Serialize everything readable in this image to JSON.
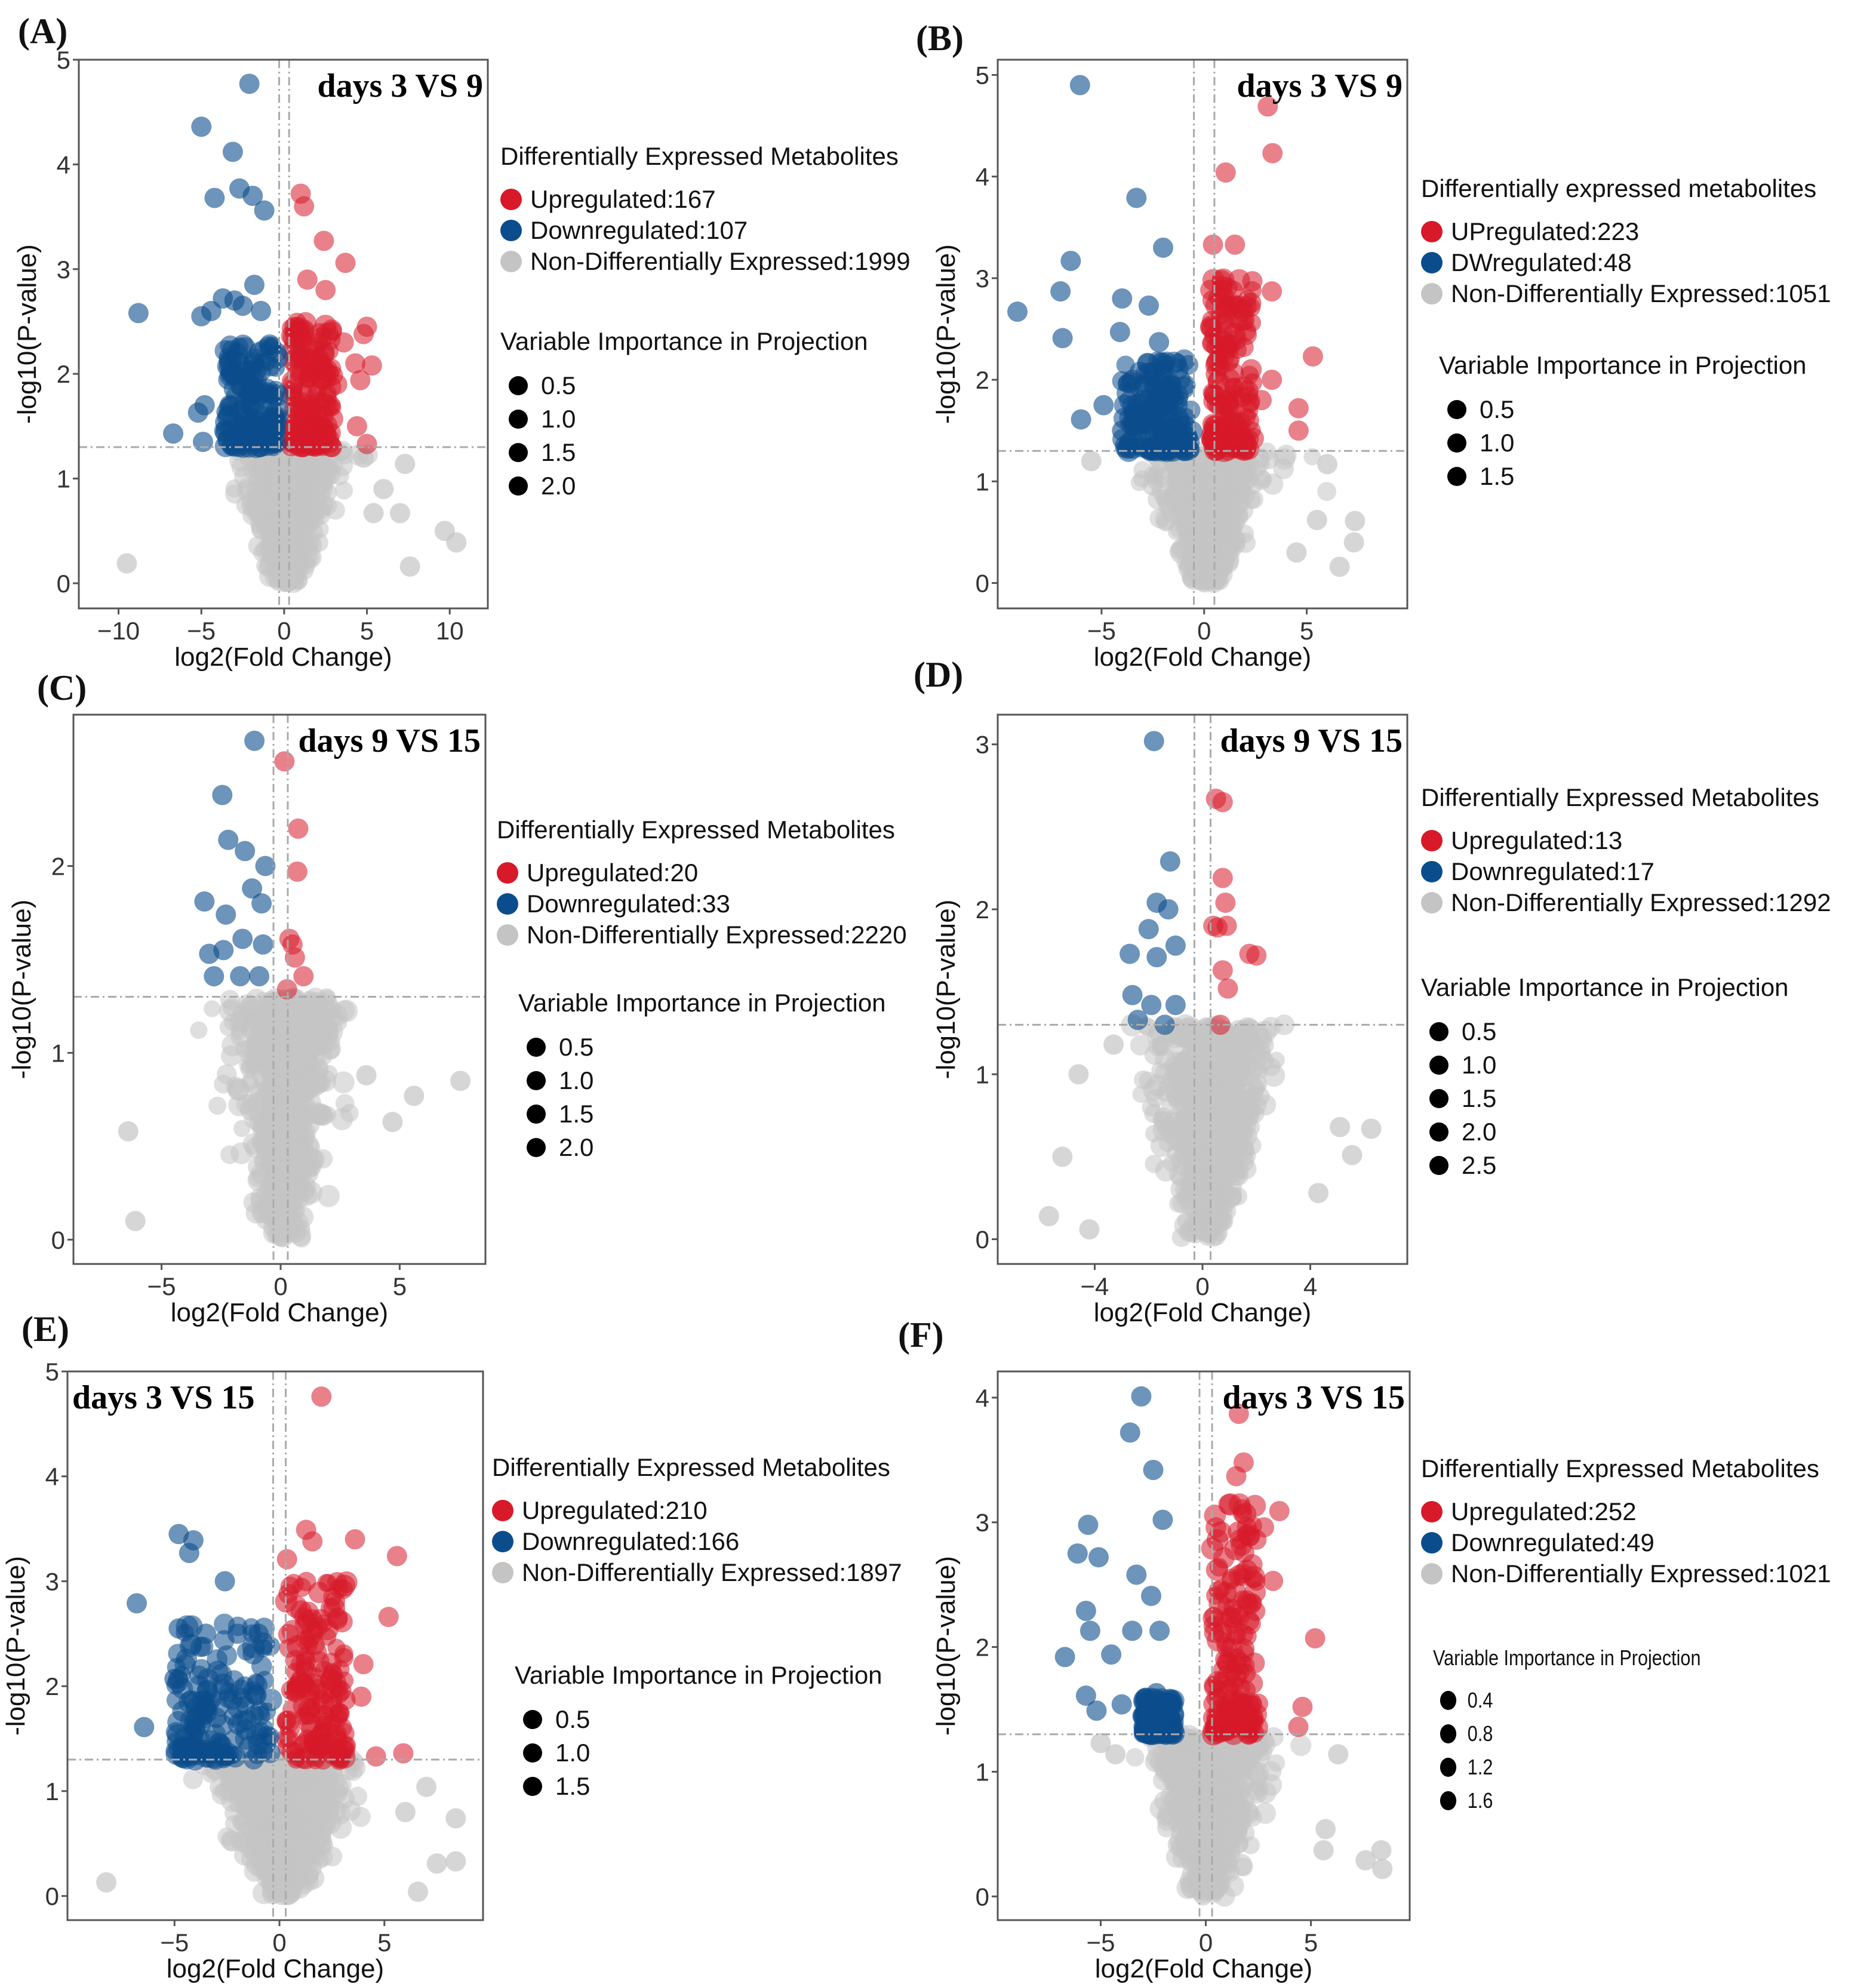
{
  "colors": {
    "up": "#d7192a",
    "down": "#0b4d8c",
    "ns": "#c4c4c4"
  },
  "chart_data": [
    {
      "type": "scatter",
      "panel": "(A)",
      "title": "days 3 VS 9",
      "xlabel": "log2(Fold Change)",
      "ylabel": "-log10(P-value)",
      "xlim": [
        -12.4,
        12.3
      ],
      "ylim": [
        -0.24,
        5
      ],
      "xticks": [
        -10,
        -5,
        0,
        5,
        10
      ],
      "yticks": [
        0,
        1,
        2,
        3,
        4,
        5
      ],
      "p_threshold": 1.3,
      "fc_lines": [
        -0.3,
        0.3
      ],
      "legend_title": "Differentially Expressed Metabolites",
      "up_label": "Upregulated:167",
      "down_label": "Downregulated:107",
      "ns_label": "Non-Differentially Expressed:1999",
      "vip_title": "Variable Importance in Projection",
      "vip_levels": [
        "0.5",
        "1.0",
        "1.5",
        "2.0"
      ],
      "clusters": {
        "up": [
          0.4,
          3.0,
          1.3,
          2.5
        ],
        "down": [
          -3.6,
          -0.4,
          1.3,
          2.3
        ],
        "ns_spread": 2.2
      },
      "up": [
        [
          1.0,
          3.72
        ],
        [
          1.2,
          3.6
        ],
        [
          2.4,
          3.27
        ],
        [
          3.7,
          3.06
        ],
        [
          1.4,
          2.9
        ],
        [
          2.5,
          2.8
        ],
        [
          5.0,
          2.45
        ],
        [
          4.8,
          2.38
        ],
        [
          4.3,
          2.1
        ],
        [
          5.3,
          2.08
        ],
        [
          4.6,
          1.94
        ],
        [
          3.6,
          2.3
        ],
        [
          5.0,
          1.33
        ],
        [
          4.4,
          1.5
        ],
        [
          2.8,
          1.7
        ],
        [
          3.2,
          1.9
        ]
      ],
      "down": [
        [
          -2.1,
          4.77
        ],
        [
          -5.0,
          4.36
        ],
        [
          -3.1,
          4.12
        ],
        [
          -4.2,
          3.68
        ],
        [
          -2.7,
          3.77
        ],
        [
          -1.9,
          3.7
        ],
        [
          -1.2,
          3.56
        ],
        [
          -8.8,
          2.58
        ],
        [
          -5.0,
          2.55
        ],
        [
          -4.4,
          2.6
        ],
        [
          -3.7,
          2.72
        ],
        [
          -3.0,
          2.7
        ],
        [
          -2.5,
          2.65
        ],
        [
          -1.8,
          2.85
        ],
        [
          -1.4,
          2.6
        ],
        [
          -6.7,
          1.43
        ],
        [
          -5.2,
          1.63
        ],
        [
          -4.8,
          1.7
        ],
        [
          -4.9,
          1.35
        ]
      ],
      "ns": [
        [
          -9.5,
          0.19
        ],
        [
          7.3,
          1.14
        ],
        [
          7.0,
          0.67
        ],
        [
          9.7,
          0.5
        ],
        [
          10.4,
          0.39
        ],
        [
          7.6,
          0.16
        ],
        [
          5.4,
          0.67
        ],
        [
          6.0,
          0.9
        ],
        [
          4.8,
          1.2
        ]
      ]
    },
    {
      "type": "scatter",
      "panel": "(B)",
      "title": "days 3 VS 9",
      "xlabel": "log2(Fold Change)",
      "ylabel": "-log10(P-value)",
      "xlim": [
        -10.06,
        9.9
      ],
      "ylim": [
        -0.25,
        5.15
      ],
      "xticks": [
        -5,
        0,
        5
      ],
      "yticks": [
        0,
        1,
        2,
        3,
        4,
        5
      ],
      "p_threshold": 1.3,
      "fc_lines": [
        -0.5,
        0.5
      ],
      "legend_title": "Differentially expressed metabolites",
      "up_label": "UPregulated:223",
      "down_label": "DWregulated:48",
      "ns_label": "Non-Differentially Expressed:1051",
      "vip_title": "Variable Importance in Projection",
      "vip_levels": [
        "0.5",
        "1.0",
        "1.5"
      ],
      "clusters": {
        "up": [
          0.3,
          2.4,
          1.3,
          3.0
        ],
        "down": [
          -4.0,
          -0.6,
          1.3,
          2.2
        ],
        "ns_spread": 2.0
      },
      "up": [
        [
          3.1,
          4.69
        ],
        [
          3.33,
          4.23
        ],
        [
          1.05,
          4.04
        ],
        [
          0.43,
          3.33
        ],
        [
          1.5,
          3.33
        ],
        [
          2.35,
          2.97
        ],
        [
          3.3,
          2.87
        ],
        [
          5.3,
          2.23
        ],
        [
          4.6,
          1.72
        ],
        [
          4.6,
          1.5
        ],
        [
          3.3,
          2.0
        ],
        [
          2.8,
          1.8
        ]
      ],
      "down": [
        [
          -6.05,
          4.9
        ],
        [
          -3.3,
          3.79
        ],
        [
          -2.0,
          3.3
        ],
        [
          -6.5,
          3.17
        ],
        [
          -9.1,
          2.67
        ],
        [
          -7.0,
          2.87
        ],
        [
          -6.9,
          2.41
        ],
        [
          -4.0,
          2.8
        ],
        [
          -2.7,
          2.73
        ],
        [
          -4.1,
          2.47
        ],
        [
          -2.2,
          2.37
        ],
        [
          -6.0,
          1.61
        ],
        [
          -4.9,
          1.75
        ],
        [
          -3.5,
          2.0
        ],
        [
          -3.0,
          1.8
        ],
        [
          -2.5,
          1.6
        ],
        [
          -2.0,
          1.5
        ],
        [
          -1.5,
          1.4
        ],
        [
          -3.2,
          1.4
        ],
        [
          -4.0,
          1.5
        ],
        [
          -1.0,
          1.3
        ]
      ],
      "ns": [
        [
          6.0,
          1.17
        ],
        [
          7.35,
          0.61
        ],
        [
          7.3,
          0.4
        ],
        [
          6.6,
          0.16
        ],
        [
          5.5,
          0.62
        ],
        [
          4.5,
          0.3
        ],
        [
          -5.5,
          1.2
        ]
      ]
    },
    {
      "type": "scatter",
      "panel": "(C)",
      "title": "days 9 VS 15",
      "xlabel": "log2(Fold Change)",
      "ylabel": "-log10(P-value)",
      "xlim": [
        -8.7,
        8.6
      ],
      "ylim": [
        -0.13,
        2.81
      ],
      "xticks": [
        -5,
        0,
        5
      ],
      "yticks": [
        0,
        1,
        2
      ],
      "p_threshold": 1.3,
      "fc_lines": [
        -0.3,
        0.3
      ],
      "legend_title": "Differentially Expressed Metabolites",
      "up_label": "Upregulated:20",
      "down_label": "Downregulated:33",
      "ns_label": "Non-Differentially Expressed:2220",
      "vip_title": "Variable Importance in Projection",
      "vip_levels": [
        "0.5",
        "1.0",
        "1.5",
        "2.0"
      ],
      "clusters": null,
      "up": [
        [
          0.16,
          2.56
        ],
        [
          0.74,
          2.2
        ],
        [
          0.7,
          1.97
        ],
        [
          0.37,
          1.61
        ],
        [
          0.6,
          1.51
        ],
        [
          0.96,
          1.41
        ],
        [
          0.27,
          1.34
        ],
        [
          0.5,
          1.58
        ]
      ],
      "down": [
        [
          -1.1,
          2.67
        ],
        [
          -2.45,
          2.38
        ],
        [
          -2.2,
          2.14
        ],
        [
          -1.5,
          2.08
        ],
        [
          -0.64,
          2.0
        ],
        [
          -3.2,
          1.81
        ],
        [
          -2.3,
          1.74
        ],
        [
          -0.8,
          1.8
        ],
        [
          -1.2,
          1.88
        ],
        [
          -3.0,
          1.53
        ],
        [
          -2.4,
          1.55
        ],
        [
          -1.6,
          1.61
        ],
        [
          -0.74,
          1.58
        ],
        [
          -2.8,
          1.41
        ],
        [
          -1.7,
          1.41
        ],
        [
          -0.9,
          1.41
        ]
      ],
      "ns": [
        [
          -6.4,
          0.58
        ],
        [
          -6.1,
          0.1
        ],
        [
          5.6,
          0.77
        ],
        [
          7.55,
          0.85
        ],
        [
          3.6,
          0.88
        ],
        [
          4.7,
          0.63
        ],
        [
          2.1,
          1.23
        ]
      ]
    },
    {
      "type": "scatter",
      "panel": "(D)",
      "title": "days 9 VS 15",
      "xlabel": "log2(Fold Change)",
      "ylabel": "-log10(P-value)",
      "xlim": [
        -7.6,
        7.6
      ],
      "ylim": [
        -0.15,
        3.18
      ],
      "xticks": [
        -4,
        0,
        4
      ],
      "yticks": [
        0,
        1,
        2,
        3
      ],
      "p_threshold": 1.3,
      "fc_lines": [
        -0.3,
        0.3
      ],
      "legend_title": "Differentially Expressed Metabolites",
      "up_label": "Upregulated:13",
      "down_label": "Downregulated:17",
      "ns_label": "Non-Differentially Expressed:1292",
      "vip_title": "Variable Importance in Projection",
      "vip_levels": [
        "0.5",
        "1.0",
        "1.5",
        "2.0",
        "2.5"
      ],
      "clusters": null,
      "up": [
        [
          0.75,
          2.65
        ],
        [
          0.5,
          2.67
        ],
        [
          0.75,
          2.19
        ],
        [
          0.85,
          2.04
        ],
        [
          0.56,
          1.89
        ],
        [
          0.9,
          1.9
        ],
        [
          0.4,
          1.9
        ],
        [
          1.74,
          1.73
        ],
        [
          2.0,
          1.72
        ],
        [
          0.75,
          1.63
        ],
        [
          0.94,
          1.52
        ],
        [
          0.66,
          1.3
        ]
      ],
      "down": [
        [
          -1.8,
          3.02
        ],
        [
          -1.2,
          2.29
        ],
        [
          -1.7,
          2.04
        ],
        [
          -1.27,
          2.0
        ],
        [
          -2.0,
          1.88
        ],
        [
          -1.0,
          1.78
        ],
        [
          -2.7,
          1.73
        ],
        [
          -1.7,
          1.71
        ],
        [
          -2.6,
          1.48
        ],
        [
          -1.9,
          1.42
        ],
        [
          -1.0,
          1.42
        ],
        [
          -2.4,
          1.33
        ],
        [
          -1.4,
          1.3
        ]
      ],
      "ns": [
        [
          -5.7,
          0.14
        ],
        [
          -5.2,
          0.5
        ],
        [
          -4.6,
          1.0
        ],
        [
          -3.3,
          1.18
        ],
        [
          5.1,
          0.68
        ],
        [
          6.26,
          0.67
        ],
        [
          5.55,
          0.51
        ],
        [
          4.3,
          0.28
        ],
        [
          -4.2,
          0.06
        ]
      ]
    },
    {
      "type": "scatter",
      "panel": "(E)",
      "title": "days 3 VS 15",
      "xlabel": "log2(Fold Change)",
      "ylabel": "-log10(P-value)",
      "xlim": [
        -10.1,
        9.7
      ],
      "ylim": [
        -0.23,
        5
      ],
      "xticks": [
        -5,
        0,
        5
      ],
      "yticks": [
        0,
        1,
        2,
        3,
        4,
        5
      ],
      "p_threshold": 1.3,
      "fc_lines": [
        -0.3,
        0.3
      ],
      "legend_title": "Differentially Expressed Metabolites",
      "up_label": "Upregulated:210",
      "down_label": "Downregulated:166",
      "ns_label": "Non-Differentially Expressed:1897",
      "vip_title": "Variable Importance in Projection",
      "vip_levels": [
        "0.5",
        "1.0",
        "1.5"
      ],
      "clusters": {
        "up": [
          0.3,
          3.2,
          1.3,
          3.0
        ],
        "down": [
          -5.0,
          -0.4,
          1.3,
          2.6
        ],
        "ns_spread": 2.6
      },
      "up": [
        [
          2.0,
          4.76
        ],
        [
          1.27,
          3.49
        ],
        [
          1.57,
          3.38
        ],
        [
          3.6,
          3.4
        ],
        [
          5.6,
          3.24
        ],
        [
          0.36,
          3.21
        ],
        [
          5.2,
          2.66
        ],
        [
          4.0,
          2.21
        ],
        [
          2.65,
          2.81
        ],
        [
          4.6,
          1.33
        ],
        [
          5.9,
          1.36
        ],
        [
          3.9,
          1.9
        ]
      ],
      "down": [
        [
          -6.8,
          2.79
        ],
        [
          -6.45,
          1.61
        ],
        [
          -4.8,
          3.45
        ],
        [
          -4.1,
          3.39
        ],
        [
          -4.3,
          3.27
        ],
        [
          -2.6,
          3.0
        ],
        [
          -4.8,
          2.55
        ],
        [
          -5.0,
          2.07
        ],
        [
          -3.5,
          2.5
        ],
        [
          -2.0,
          2.5
        ],
        [
          -1.0,
          2.5
        ],
        [
          -4.0,
          1.6
        ],
        [
          -3.0,
          1.7
        ]
      ],
      "ns": [
        [
          -8.25,
          0.13
        ],
        [
          8.4,
          0.74
        ],
        [
          8.4,
          0.33
        ],
        [
          7.5,
          0.31
        ],
        [
          6.6,
          0.04
        ],
        [
          7.0,
          1.04
        ],
        [
          6.0,
          0.8
        ]
      ]
    },
    {
      "type": "scatter",
      "panel": "(F)",
      "title": "days 3 VS 15",
      "xlabel": "log2(Fold Change)",
      "ylabel": "-log10(P-value)",
      "xlim": [
        -9.9,
        9.7
      ],
      "ylim": [
        -0.19,
        4.21
      ],
      "xticks": [
        -5,
        0,
        5
      ],
      "yticks": [
        0,
        1,
        2,
        3,
        4
      ],
      "p_threshold": 1.3,
      "fc_lines": [
        -0.3,
        0.3
      ],
      "legend_title": "Differentially Expressed Metabolites",
      "up_label": "Upregulated:252",
      "down_label": "Downregulated:49",
      "ns_label": "Non-Differentially Expressed:1021",
      "vip_title": "Variable Importance in Projection",
      "vip_levels": [
        "0.4",
        "0.8",
        "1.2",
        "1.6"
      ],
      "clusters": {
        "up": [
          0.3,
          2.5,
          1.3,
          3.2
        ],
        "down": [
          -3.0,
          -1.5,
          1.3,
          1.6
        ],
        "ns_spread": 2.2
      },
      "up": [
        [
          1.57,
          3.87
        ],
        [
          1.8,
          3.48
        ],
        [
          1.45,
          3.37
        ],
        [
          3.5,
          3.09
        ],
        [
          2.77,
          2.96
        ],
        [
          3.2,
          2.53
        ],
        [
          5.2,
          2.07
        ],
        [
          4.6,
          1.52
        ],
        [
          4.4,
          1.36
        ],
        [
          1.0,
          2.0
        ]
      ],
      "down": [
        [
          -3.07,
          4.01
        ],
        [
          -3.6,
          3.72
        ],
        [
          -2.5,
          3.42
        ],
        [
          -5.6,
          2.98
        ],
        [
          -6.1,
          2.75
        ],
        [
          -5.1,
          2.72
        ],
        [
          -2.05,
          3.02
        ],
        [
          -3.3,
          2.58
        ],
        [
          -2.6,
          2.41
        ],
        [
          -5.7,
          2.29
        ],
        [
          -6.7,
          1.92
        ],
        [
          -5.5,
          2.13
        ],
        [
          -4.5,
          1.94
        ],
        [
          -3.5,
          2.13
        ],
        [
          -2.2,
          2.13
        ],
        [
          -5.7,
          1.61
        ],
        [
          -5.2,
          1.49
        ],
        [
          -4.0,
          1.54
        ],
        [
          -2.35,
          1.63
        ],
        [
          -3.0,
          1.45
        ],
        [
          -2.4,
          1.4
        ]
      ],
      "ns": [
        [
          8.4,
          0.22
        ],
        [
          8.35,
          0.37
        ],
        [
          7.6,
          0.29
        ],
        [
          6.3,
          1.14
        ],
        [
          5.7,
          0.54
        ],
        [
          5.6,
          0.37
        ],
        [
          -4.3,
          1.14
        ],
        [
          -5.0,
          1.23
        ]
      ]
    }
  ]
}
